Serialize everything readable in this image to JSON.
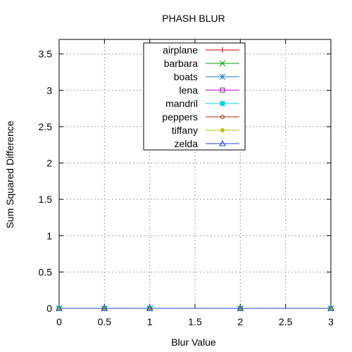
{
  "chart_data": {
    "type": "line",
    "title": "PHASH BLUR",
    "xlabel": "Blur Value",
    "ylabel": "Sum Squared Difference",
    "xlim": [
      0,
      3
    ],
    "ylim": [
      0,
      3.7
    ],
    "x_ticks": [
      "0",
      "0.5",
      "1",
      "1.5",
      "2",
      "2.5",
      "3"
    ],
    "y_ticks": [
      "0",
      "0.5",
      "1",
      "1.5",
      "2",
      "2.5",
      "3",
      "3.5"
    ],
    "grid": true,
    "legend_position": "top-center",
    "x": [
      0,
      0.5,
      1,
      2,
      3
    ],
    "series": [
      {
        "name": "airplane",
        "values": [
          0,
          0,
          0,
          0,
          0
        ],
        "color": "#cc0000",
        "marker": "plus"
      },
      {
        "name": "barbara",
        "values": [
          0,
          0,
          0,
          0,
          0
        ],
        "color": "#00a000",
        "marker": "cross"
      },
      {
        "name": "boats",
        "values": [
          0,
          0,
          0,
          0,
          0
        ],
        "color": "#1a7fbf",
        "marker": "star"
      },
      {
        "name": "lena",
        "values": [
          0,
          0,
          0,
          0,
          0
        ],
        "color": "#a000c0",
        "marker": "square-open"
      },
      {
        "name": "mandril",
        "values": [
          0,
          0,
          0,
          0,
          0
        ],
        "color": "#00d8d8",
        "marker": "square-filled"
      },
      {
        "name": "peppers",
        "values": [
          0,
          0,
          0,
          0,
          0
        ],
        "color": "#a03000",
        "marker": "circle-open"
      },
      {
        "name": "tiffany",
        "values": [
          0,
          0,
          0,
          0,
          0
        ],
        "color": "#c0c000",
        "marker": "circle-filled"
      },
      {
        "name": "zelda",
        "values": [
          0,
          0,
          0,
          0,
          0
        ],
        "color": "#2040d0",
        "marker": "triangle-open"
      }
    ]
  }
}
